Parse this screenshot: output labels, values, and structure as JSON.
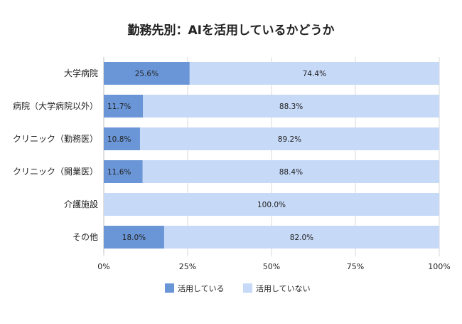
{
  "chart_data": {
    "type": "bar",
    "orientation": "horizontal",
    "stacked": true,
    "title": "勤務先別：AIを活用しているかどうか",
    "categories": [
      "大学病院",
      "病院（大学病院以外）",
      "クリニック（勤務医）",
      "クリニック（開業医）",
      "介護施設",
      "その他"
    ],
    "series": [
      {
        "name": "活用している",
        "color": "#6a96d8",
        "values": [
          25.6,
          11.7,
          10.8,
          11.6,
          0.0,
          18.0
        ],
        "labels": [
          "25.6%",
          "11.7%",
          "10.8%",
          "11.6%",
          "",
          "18.0%"
        ]
      },
      {
        "name": "活用していない",
        "color": "#c6d9f7",
        "values": [
          74.4,
          88.3,
          89.2,
          88.4,
          100.0,
          82.0
        ],
        "labels": [
          "74.4%",
          "88.3%",
          "89.2%",
          "88.4%",
          "100.0%",
          "82.0%"
        ]
      }
    ],
    "xlim": [
      0,
      100
    ],
    "xticks": [
      {
        "value": 0,
        "label": "0%"
      },
      {
        "value": 25,
        "label": "25%"
      },
      {
        "value": 50,
        "label": "50%"
      },
      {
        "value": 75,
        "label": "75%"
      },
      {
        "value": 100,
        "label": "100%"
      }
    ],
    "grid": "vertical",
    "legend": "bottom"
  }
}
